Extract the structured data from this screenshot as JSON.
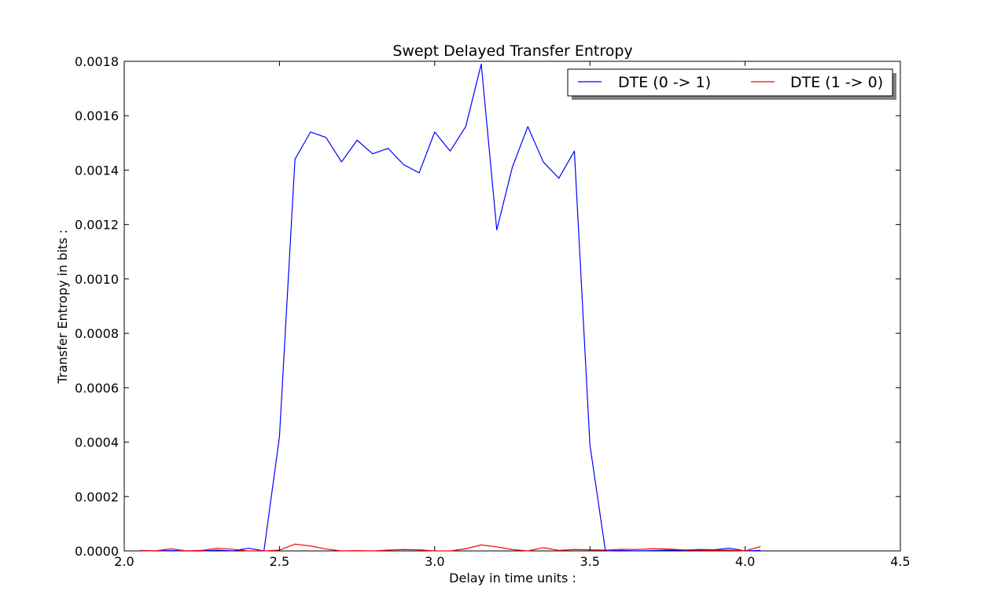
{
  "chart_data": {
    "type": "line",
    "title": "Swept Delayed Transfer Entropy",
    "xlabel": "Delay in time units :",
    "ylabel": "Transfer Entropy in bits :",
    "xlim": [
      2.0,
      4.5
    ],
    "ylim": [
      0.0,
      0.0018
    ],
    "xticks": [
      "2.0",
      "2.5",
      "3.0",
      "3.5",
      "4.0",
      "4.5"
    ],
    "yticks": [
      "0.0000",
      "0.0002",
      "0.0004",
      "0.0006",
      "0.0008",
      "0.0010",
      "0.0012",
      "0.0014",
      "0.0016",
      "0.0018"
    ],
    "grid": false,
    "legend_position": "top-right",
    "x": [
      2.05,
      2.1,
      2.15,
      2.2,
      2.25,
      2.3,
      2.35,
      2.4,
      2.45,
      2.5,
      2.55,
      2.6,
      2.65,
      2.7,
      2.75,
      2.8,
      2.85,
      2.9,
      2.95,
      3.0,
      3.05,
      3.1,
      3.15,
      3.2,
      3.25,
      3.3,
      3.35,
      3.4,
      3.45,
      3.5,
      3.55,
      3.6,
      3.65,
      3.7,
      3.75,
      3.8,
      3.85,
      3.9,
      3.95,
      4.0,
      4.05
    ],
    "series": [
      {
        "name": "DTE (0 -> 1)",
        "color": "#0000ff",
        "values": [
          2e-06,
          0.0,
          1e-06,
          0.0,
          0.0,
          3e-06,
          0.0,
          1e-05,
          0.0,
          0.00042,
          0.00144,
          0.00154,
          0.00152,
          0.00143,
          0.00151,
          0.00146,
          0.00148,
          0.00142,
          0.00139,
          0.00154,
          0.00147,
          0.00156,
          0.00179,
          0.00118,
          0.00141,
          0.00156,
          0.00143,
          0.00137,
          0.00147,
          0.00039,
          0.0,
          2e-06,
          0.0,
          1e-06,
          3e-06,
          2e-06,
          5e-06,
          4e-06,
          1e-05,
          0.0,
          2e-06
        ]
      },
      {
        "name": "DTE (1 -> 0)",
        "color": "#ff0000",
        "values": [
          1e-06,
          0.0,
          8e-06,
          0.0,
          2e-06,
          1e-05,
          6e-06,
          0.0,
          0.0,
          3e-06,
          2.5e-05,
          1.8e-05,
          7e-06,
          0.0,
          1e-06,
          0.0,
          3e-06,
          5e-06,
          4e-06,
          0.0,
          0.0,
          8e-06,
          2.2e-05,
          1.5e-05,
          5e-06,
          0.0,
          1.2e-05,
          2e-06,
          5e-06,
          4e-06,
          3e-06,
          6e-06,
          5e-06,
          8e-06,
          7e-06,
          4e-06,
          3e-06,
          2e-06,
          3e-06,
          0.0,
          1.6e-05
        ]
      }
    ]
  }
}
